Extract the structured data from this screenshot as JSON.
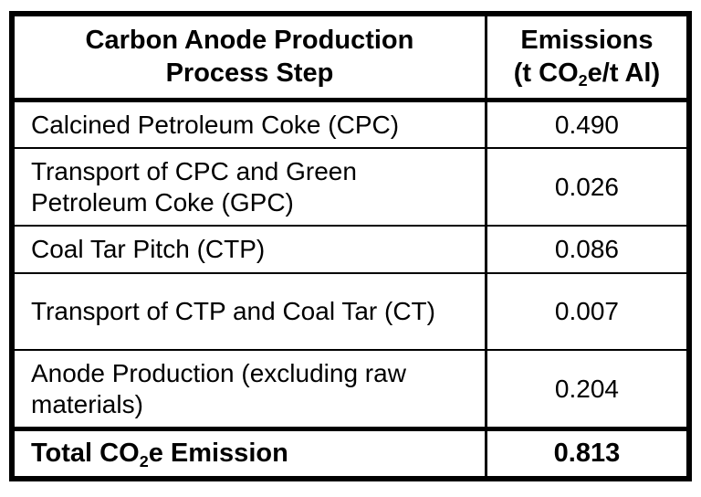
{
  "table": {
    "header": {
      "step_line1": "Carbon Anode Production",
      "step_line2": "Process Step",
      "emissions_line1": "Emissions",
      "emissions_line2_pre": "(t CO",
      "emissions_line2_sub": "2",
      "emissions_line2_post": "e/t Al)"
    },
    "rows": [
      {
        "step": "Calcined Petroleum Coke (CPC)",
        "value": "0.490"
      },
      {
        "step": "Transport of CPC and Green Petroleum Coke (GPC)",
        "value": "0.026"
      },
      {
        "step": "Coal Tar Pitch (CTP)",
        "value": "0.086"
      },
      {
        "step": "Transport of CTP and Coal Tar (CT)",
        "value": "0.007"
      },
      {
        "step": "Anode Production (excluding raw materials)",
        "value": "0.204"
      }
    ],
    "total": {
      "label_pre": "Total CO",
      "label_sub": "2",
      "label_post": "e Emission",
      "value": "0.813"
    }
  },
  "chart_data": {
    "type": "table",
    "title": "Carbon Anode Production Process Step Emissions",
    "columns": [
      "Carbon Anode Production Process Step",
      "Emissions (t CO2e/t Al)"
    ],
    "categories": [
      "Calcined Petroleum Coke (CPC)",
      "Transport of CPC and Green Petroleum Coke (GPC)",
      "Coal Tar Pitch (CTP)",
      "Transport of CTP and Coal Tar (CT)",
      "Anode Production (excluding raw materials)"
    ],
    "values": [
      0.49,
      0.026,
      0.086,
      0.007,
      0.204
    ],
    "total_label": "Total CO2e Emission",
    "total_value": 0.813
  },
  "colors": {
    "border": "#000000",
    "background": "#ffffff",
    "text": "#000000"
  }
}
